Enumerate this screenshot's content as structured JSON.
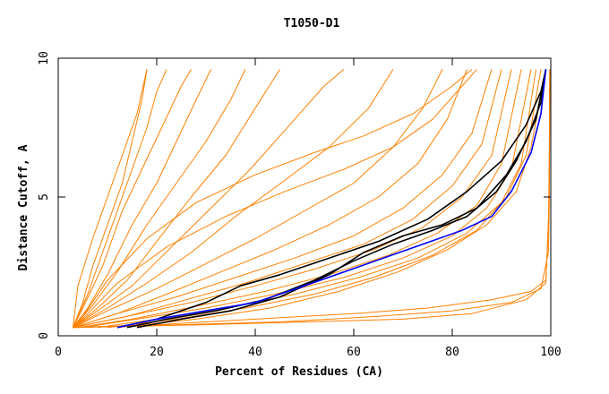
{
  "chart_data": {
    "type": "line",
    "title": "T1050-D1",
    "xlabel": "Percent of Residues (CA)",
    "ylabel": "Distance Cutoff, A",
    "xlim": [
      0,
      100
    ],
    "ylim": [
      0,
      10
    ],
    "x_ticks": [
      {
        "value": 0,
        "label": "0"
      },
      {
        "value": 20,
        "label": "20"
      },
      {
        "value": 40,
        "label": "40"
      },
      {
        "value": 60,
        "label": "60"
      },
      {
        "value": 80,
        "label": "80"
      },
      {
        "value": 100,
        "label": "100"
      }
    ],
    "y_ticks": [
      {
        "value": 0,
        "label": "0"
      },
      {
        "value": 5,
        "label": "5"
      },
      {
        "value": 10,
        "label": "10"
      }
    ],
    "grid": false,
    "colors": {
      "models": "#ff8000",
      "highlight_black": "#000000",
      "highlight_blue": "#0000ff"
    },
    "series": [
      {
        "color": "#ff8000",
        "points": [
          [
            3,
            0.3
          ],
          [
            5,
            1.2
          ],
          [
            7,
            2.5
          ],
          [
            10,
            4.0
          ],
          [
            13,
            5.5
          ],
          [
            15,
            7.0
          ],
          [
            17,
            8.5
          ],
          [
            18,
            9.6
          ]
        ]
      },
      {
        "color": "#ff8000",
        "points": [
          [
            3,
            0.3
          ],
          [
            6,
            1.5
          ],
          [
            9,
            3.0
          ],
          [
            12,
            4.5
          ],
          [
            15,
            6.0
          ],
          [
            18,
            7.5
          ],
          [
            20,
            8.8
          ],
          [
            22,
            9.6
          ]
        ]
      },
      {
        "color": "#ff8000",
        "points": [
          [
            3,
            0.3
          ],
          [
            5,
            1.0
          ],
          [
            9,
            2.5
          ],
          [
            13,
            4.5
          ],
          [
            17,
            6.0
          ],
          [
            21,
            7.5
          ],
          [
            25,
            9.0
          ],
          [
            27,
            9.6
          ]
        ]
      },
      {
        "color": "#ff8000",
        "points": [
          [
            3,
            0.3
          ],
          [
            6,
            1.0
          ],
          [
            10,
            2.2
          ],
          [
            15,
            4.0
          ],
          [
            20,
            5.5
          ],
          [
            24,
            7.0
          ],
          [
            28,
            8.5
          ],
          [
            31,
            9.6
          ]
        ]
      },
      {
        "color": "#ff8000",
        "points": [
          [
            3,
            0.3
          ],
          [
            7,
            1.1
          ],
          [
            12,
            2.3
          ],
          [
            18,
            4.0
          ],
          [
            24,
            5.5
          ],
          [
            30,
            7.0
          ],
          [
            35,
            8.5
          ],
          [
            38,
            9.6
          ]
        ]
      },
      {
        "color": "#ff8000",
        "points": [
          [
            3,
            0.3
          ],
          [
            8,
            1.0
          ],
          [
            14,
            2.0
          ],
          [
            20,
            3.4
          ],
          [
            27,
            5.0
          ],
          [
            34,
            6.5
          ],
          [
            40,
            8.2
          ],
          [
            45,
            9.6
          ]
        ]
      },
      {
        "color": "#ff8000",
        "points": [
          [
            3,
            0.3
          ],
          [
            8,
            0.9
          ],
          [
            15,
            1.8
          ],
          [
            23,
            3.2
          ],
          [
            31,
            4.6
          ],
          [
            39,
            6.0
          ],
          [
            47,
            7.6
          ],
          [
            54,
            9.0
          ],
          [
            58,
            9.6
          ]
        ]
      },
      {
        "color": "#ff8000",
        "points": [
          [
            3,
            0.3
          ],
          [
            10,
            1.0
          ],
          [
            18,
            1.9
          ],
          [
            27,
            3.0
          ],
          [
            36,
            4.3
          ],
          [
            46,
            5.6
          ],
          [
            55,
            6.8
          ],
          [
            63,
            8.2
          ],
          [
            68,
            9.6
          ]
        ]
      },
      {
        "color": "#ff8000",
        "points": [
          [
            3,
            0.3
          ],
          [
            10,
            0.9
          ],
          [
            20,
            1.7
          ],
          [
            30,
            2.6
          ],
          [
            40,
            3.5
          ],
          [
            50,
            4.5
          ],
          [
            60,
            5.5
          ],
          [
            68,
            6.8
          ],
          [
            74,
            8.2
          ],
          [
            78,
            9.6
          ]
        ]
      },
      {
        "color": "#ff8000",
        "points": [
          [
            3,
            0.3
          ],
          [
            12,
            0.8
          ],
          [
            22,
            1.5
          ],
          [
            33,
            2.3
          ],
          [
            44,
            3.1
          ],
          [
            55,
            4.0
          ],
          [
            65,
            5.0
          ],
          [
            73,
            6.2
          ],
          [
            79,
            7.8
          ],
          [
            83,
            9.6
          ]
        ]
      },
      {
        "color": "#ff8000",
        "points": [
          [
            3,
            0.3
          ],
          [
            12,
            0.8
          ],
          [
            24,
            1.4
          ],
          [
            36,
            2.1
          ],
          [
            48,
            2.8
          ],
          [
            60,
            3.6
          ],
          [
            70,
            4.6
          ],
          [
            78,
            5.8
          ],
          [
            84,
            7.3
          ],
          [
            88,
            9.6
          ]
        ]
      },
      {
        "color": "#ff8000",
        "points": [
          [
            3,
            0.3
          ],
          [
            14,
            0.7
          ],
          [
            26,
            1.3
          ],
          [
            38,
            1.9
          ],
          [
            50,
            2.6
          ],
          [
            62,
            3.3
          ],
          [
            72,
            4.2
          ],
          [
            80,
            5.4
          ],
          [
            86,
            6.9
          ],
          [
            90,
            9.6
          ]
        ]
      },
      {
        "color": "#ff8000",
        "points": [
          [
            3,
            0.3
          ],
          [
            14,
            0.7
          ],
          [
            27,
            1.2
          ],
          [
            40,
            1.8
          ],
          [
            52,
            2.4
          ],
          [
            64,
            3.1
          ],
          [
            74,
            3.9
          ],
          [
            82,
            5.0
          ],
          [
            88,
            6.5
          ],
          [
            92,
            9.6
          ]
        ]
      },
      {
        "color": "#ff8000",
        "points": [
          [
            4,
            0.3
          ],
          [
            15,
            0.6
          ],
          [
            29,
            1.1
          ],
          [
            42,
            1.6
          ],
          [
            55,
            2.2
          ],
          [
            67,
            2.9
          ],
          [
            77,
            3.7
          ],
          [
            85,
            4.7
          ],
          [
            90,
            6.2
          ],
          [
            94,
            9.6
          ]
        ]
      },
      {
        "color": "#ff8000",
        "points": [
          [
            5,
            0.3
          ],
          [
            16,
            0.6
          ],
          [
            30,
            1.0
          ],
          [
            44,
            1.5
          ],
          [
            58,
            2.1
          ],
          [
            70,
            2.8
          ],
          [
            80,
            3.6
          ],
          [
            87,
            4.6
          ],
          [
            92,
            6.0
          ],
          [
            96,
            9.6
          ]
        ]
      },
      {
        "color": "#ff8000",
        "points": [
          [
            8,
            0.3
          ],
          [
            20,
            0.6
          ],
          [
            34,
            1.0
          ],
          [
            48,
            1.5
          ],
          [
            61,
            2.1
          ],
          [
            73,
            2.8
          ],
          [
            83,
            3.7
          ],
          [
            90,
            4.8
          ],
          [
            94,
            6.2
          ],
          [
            97,
            9.6
          ]
        ]
      },
      {
        "color": "#ff8000",
        "points": [
          [
            10,
            0.3
          ],
          [
            24,
            0.6
          ],
          [
            38,
            1.0
          ],
          [
            52,
            1.5
          ],
          [
            64,
            2.1
          ],
          [
            76,
            2.9
          ],
          [
            85,
            3.8
          ],
          [
            91,
            5.0
          ],
          [
            95,
            6.5
          ],
          [
            98,
            9.6
          ]
        ]
      },
      {
        "color": "#ff8000",
        "points": [
          [
            12,
            0.3
          ],
          [
            28,
            0.6
          ],
          [
            43,
            1.0
          ],
          [
            57,
            1.6
          ],
          [
            69,
            2.3
          ],
          [
            79,
            3.1
          ],
          [
            87,
            4.0
          ],
          [
            93,
            5.2
          ],
          [
            96,
            6.8
          ],
          [
            99,
            9.6
          ]
        ]
      },
      {
        "color": "#ff8000",
        "points": [
          [
            3,
            0.3
          ],
          [
            4,
            1.8
          ],
          [
            7,
            3.5
          ],
          [
            10,
            5.0
          ],
          [
            13,
            6.5
          ],
          [
            16,
            8.0
          ],
          [
            18,
            9.6
          ]
        ]
      },
      {
        "color": "#ff8000",
        "points": [
          [
            3,
            0.3
          ],
          [
            5,
            0.7
          ],
          [
            10,
            2.0
          ],
          [
            18,
            3.5
          ],
          [
            28,
            4.8
          ],
          [
            40,
            5.8
          ],
          [
            52,
            6.6
          ],
          [
            62,
            7.2
          ],
          [
            72,
            8.0
          ],
          [
            80,
            9.0
          ],
          [
            84,
            9.6
          ]
        ]
      },
      {
        "color": "#ff8000",
        "points": [
          [
            3,
            0.3
          ],
          [
            6,
            0.8
          ],
          [
            12,
            1.9
          ],
          [
            22,
            3.2
          ],
          [
            34,
            4.3
          ],
          [
            46,
            5.2
          ],
          [
            58,
            6.0
          ],
          [
            68,
            6.8
          ],
          [
            76,
            7.8
          ],
          [
            82,
            9.0
          ],
          [
            85,
            9.6
          ]
        ]
      },
      {
        "color": "#ff8000",
        "points": [
          [
            3,
            0.3
          ],
          [
            20,
            0.4
          ],
          [
            40,
            0.6
          ],
          [
            60,
            0.8
          ],
          [
            75,
            1.0
          ],
          [
            88,
            1.3
          ],
          [
            96,
            1.6
          ],
          [
            99,
            2.0
          ],
          [
            99.5,
            4.0
          ],
          [
            99.7,
            6.0
          ],
          [
            99.8,
            9.6
          ]
        ]
      },
      {
        "color": "#ff8000",
        "points": [
          [
            3,
            0.3
          ],
          [
            25,
            0.4
          ],
          [
            45,
            0.5
          ],
          [
            65,
            0.7
          ],
          [
            80,
            0.9
          ],
          [
            92,
            1.2
          ],
          [
            98,
            1.7
          ],
          [
            99.5,
            3.0
          ],
          [
            99.7,
            5.0
          ],
          [
            99.8,
            9.6
          ]
        ]
      },
      {
        "color": "#ff8000",
        "points": [
          [
            3,
            0.3
          ],
          [
            30,
            0.4
          ],
          [
            50,
            0.5
          ],
          [
            70,
            0.6
          ],
          [
            84,
            0.8
          ],
          [
            95,
            1.3
          ],
          [
            99,
            1.9
          ],
          [
            99.6,
            4.5
          ],
          [
            99.8,
            9.6
          ]
        ]
      },
      {
        "color": "#000000",
        "points": [
          [
            12,
            0.3
          ],
          [
            20,
            0.6
          ],
          [
            30,
            1.2
          ],
          [
            37,
            1.8
          ],
          [
            45,
            2.2
          ],
          [
            55,
            2.8
          ],
          [
            65,
            3.4
          ],
          [
            75,
            4.2
          ],
          [
            83,
            5.2
          ],
          [
            90,
            6.3
          ],
          [
            95,
            7.6
          ],
          [
            98,
            8.8
          ],
          [
            99,
            9.6
          ]
        ]
      },
      {
        "color": "#000000",
        "points": [
          [
            16,
            0.3
          ],
          [
            25,
            0.6
          ],
          [
            35,
            0.9
          ],
          [
            45,
            1.4
          ],
          [
            55,
            2.2
          ],
          [
            62,
            3.0
          ],
          [
            70,
            3.6
          ],
          [
            78,
            4.0
          ],
          [
            85,
            4.6
          ],
          [
            91,
            5.8
          ],
          [
            95,
            7.0
          ],
          [
            98,
            8.4
          ],
          [
            99,
            9.6
          ]
        ]
      },
      {
        "color": "#000000",
        "points": [
          [
            14,
            0.3
          ],
          [
            22,
            0.6
          ],
          [
            32,
            0.9
          ],
          [
            42,
            1.3
          ],
          [
            52,
            2.0
          ],
          [
            60,
            2.7
          ],
          [
            68,
            3.3
          ],
          [
            76,
            3.8
          ],
          [
            83,
            4.3
          ],
          [
            89,
            5.2
          ],
          [
            93,
            6.3
          ],
          [
            97,
            7.8
          ],
          [
            99,
            9.6
          ]
        ]
      },
      {
        "color": "#0000ff",
        "points": [
          [
            12,
            0.3
          ],
          [
            20,
            0.6
          ],
          [
            30,
            0.9
          ],
          [
            40,
            1.2
          ],
          [
            50,
            1.8
          ],
          [
            58,
            2.3
          ],
          [
            66,
            2.8
          ],
          [
            74,
            3.3
          ],
          [
            82,
            3.8
          ],
          [
            88,
            4.3
          ],
          [
            92,
            5.2
          ],
          [
            96,
            6.6
          ],
          [
            98,
            8.0
          ],
          [
            99,
            9.6
          ]
        ]
      }
    ]
  }
}
